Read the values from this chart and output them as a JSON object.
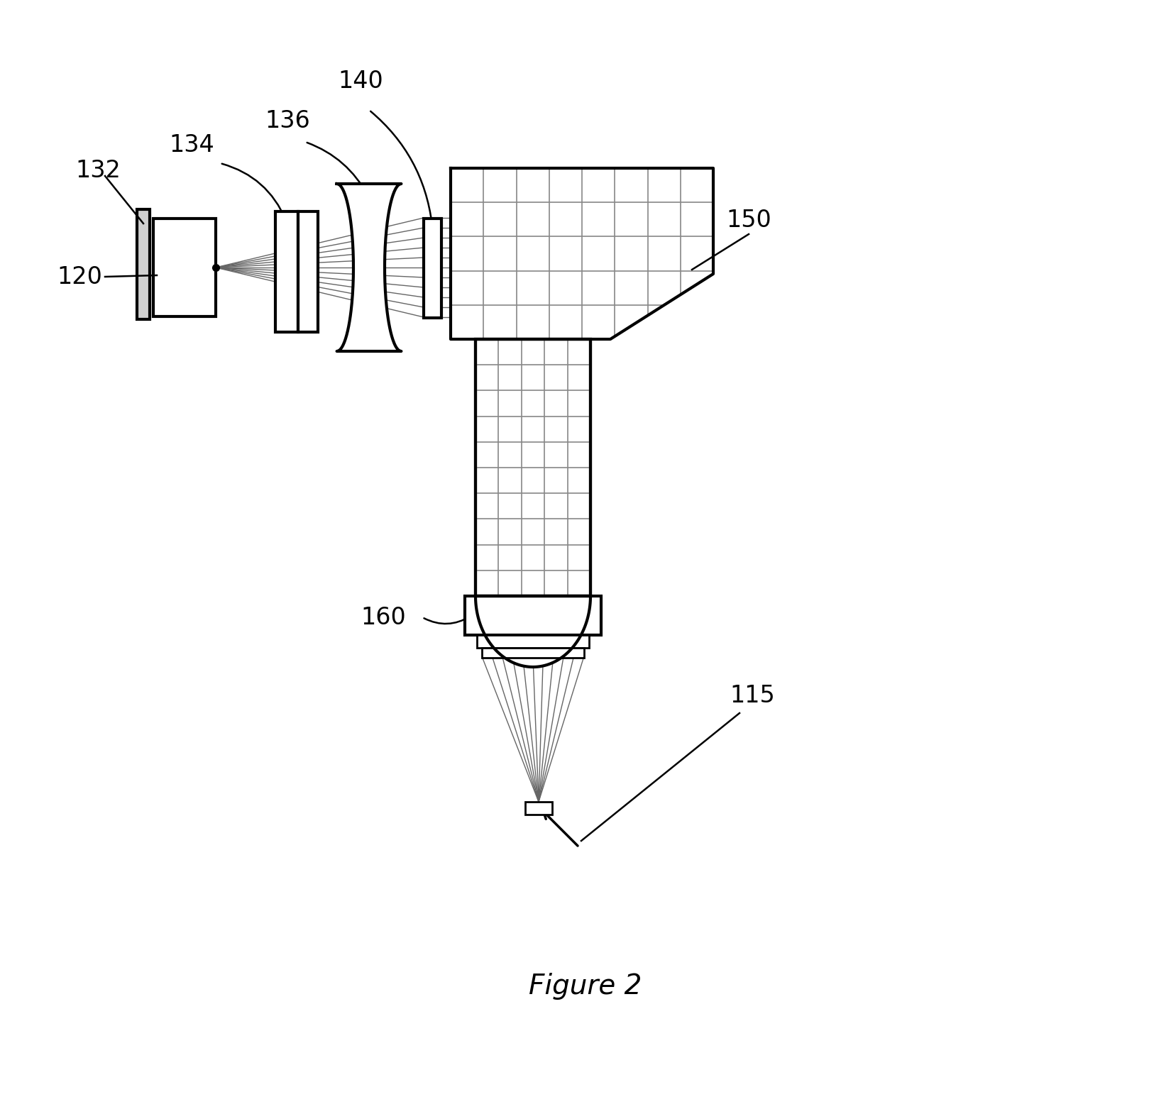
{
  "bg_color": "#ffffff",
  "line_color": "#000000",
  "fig_width": 16.5,
  "fig_height": 15.7,
  "title": "Figure 2",
  "label_fontsize": 24
}
